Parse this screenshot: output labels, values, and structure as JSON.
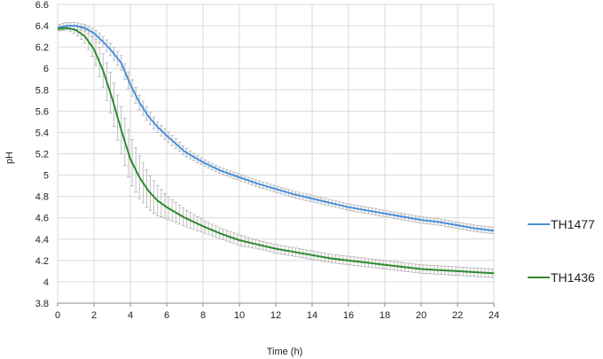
{
  "chart_data": {
    "type": "line",
    "xlabel": "Time (h)",
    "ylabel": "pH",
    "xlim": [
      0,
      24
    ],
    "ylim": [
      3.8,
      6.6
    ],
    "x_ticks": [
      0,
      2,
      4,
      6,
      8,
      10,
      12,
      14,
      16,
      18,
      20,
      22,
      24
    ],
    "y_ticks": [
      3.8,
      4,
      4.2,
      4.4,
      4.6,
      4.8,
      5,
      5.2,
      5.4,
      5.6,
      5.8,
      6,
      6.2,
      6.4,
      6.6
    ],
    "grid": true,
    "legend_position": "right",
    "x": [
      0,
      0.5,
      1,
      1.5,
      2,
      2.5,
      3,
      3.5,
      4,
      4.5,
      5,
      5.5,
      6,
      7,
      8,
      9,
      10,
      11,
      12,
      13,
      14,
      15,
      16,
      17,
      18,
      19,
      20,
      21,
      22,
      23,
      24
    ],
    "series": [
      {
        "name": "TH1477",
        "color": "#4a90d9",
        "values": [
          6.38,
          6.4,
          6.4,
          6.38,
          6.33,
          6.25,
          6.16,
          6.05,
          5.85,
          5.68,
          5.55,
          5.45,
          5.37,
          5.22,
          5.12,
          5.04,
          4.98,
          4.92,
          4.87,
          4.82,
          4.78,
          4.74,
          4.7,
          4.67,
          4.64,
          4.61,
          4.58,
          4.56,
          4.53,
          4.5,
          4.48
        ],
        "error": [
          0.03,
          0.03,
          0.03,
          0.03,
          0.04,
          0.05,
          0.06,
          0.07,
          0.08,
          0.07,
          0.06,
          0.05,
          0.05,
          0.04,
          0.03,
          0.03,
          0.03,
          0.03,
          0.03,
          0.03,
          0.03,
          0.03,
          0.03,
          0.03,
          0.03,
          0.03,
          0.03,
          0.03,
          0.03,
          0.03,
          0.03
        ]
      },
      {
        "name": "TH1436",
        "color": "#2e8b2e",
        "values": [
          6.37,
          6.38,
          6.36,
          6.3,
          6.18,
          5.98,
          5.72,
          5.42,
          5.15,
          4.98,
          4.85,
          4.76,
          4.7,
          4.6,
          4.52,
          4.45,
          4.39,
          4.35,
          4.31,
          4.28,
          4.25,
          4.22,
          4.2,
          4.18,
          4.16,
          4.14,
          4.12,
          4.11,
          4.1,
          4.09,
          4.08
        ],
        "error": [
          0.02,
          0.02,
          0.04,
          0.06,
          0.1,
          0.16,
          0.2,
          0.22,
          0.22,
          0.2,
          0.17,
          0.14,
          0.11,
          0.08,
          0.06,
          0.05,
          0.05,
          0.04,
          0.04,
          0.04,
          0.04,
          0.04,
          0.04,
          0.04,
          0.04,
          0.04,
          0.04,
          0.04,
          0.04,
          0.04,
          0.04
        ]
      }
    ]
  }
}
